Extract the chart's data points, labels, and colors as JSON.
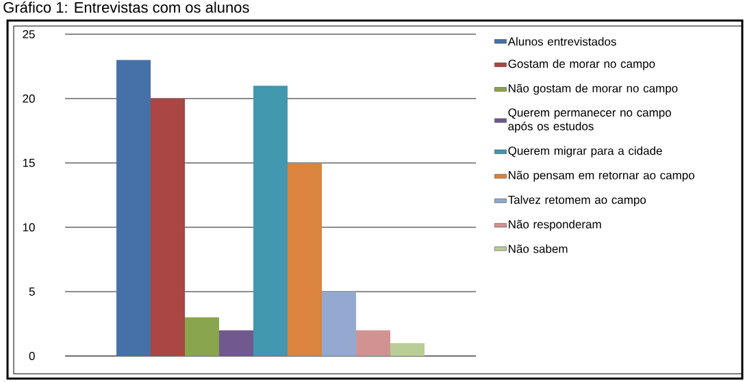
{
  "chart_data": {
    "type": "bar",
    "title": "Gráfico 1: Entrevistas com os alunos",
    "categories": [
      null
    ],
    "series": [
      {
        "name": "Alunos entrevistados",
        "color": "#4571a8",
        "values": [
          23
        ]
      },
      {
        "name": "Gostam de morar no campo",
        "color": "#aa4643",
        "values": [
          20
        ]
      },
      {
        "name": "Não gostam de morar no campo",
        "color": "#89a54e",
        "values": [
          3
        ]
      },
      {
        "name": "Querem permanecer no campo após os estudos",
        "color": "#71588f",
        "values": [
          2
        ]
      },
      {
        "name": "Querem migrar para a cidade",
        "color": "#4198af",
        "values": [
          21
        ]
      },
      {
        "name": "Não pensam em retornar ao campo",
        "color": "#db843d",
        "values": [
          15
        ]
      },
      {
        "name": "Talvez retomem ao campo",
        "color": "#93a9cf",
        "values": [
          5
        ]
      },
      {
        "name": "Não responderam",
        "color": "#d19392",
        "values": [
          2
        ]
      },
      {
        "name": "Não sabem",
        "color": "#b9cd96",
        "values": [
          1
        ]
      }
    ],
    "ylim": [
      0,
      25
    ],
    "yticks": [
      0,
      5,
      10,
      15,
      20,
      25
    ],
    "grid": "y",
    "legend": "right"
  }
}
